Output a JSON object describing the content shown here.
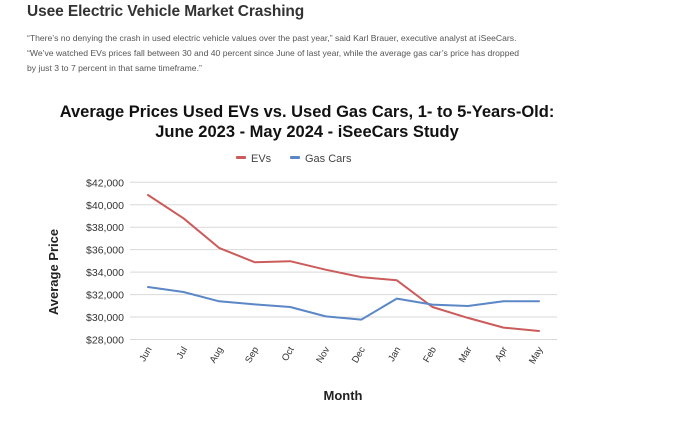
{
  "article": {
    "headline": "Usee Electric Vehicle Market Crashing",
    "quote_lines": [
      "“There’s no denying the crash in used electric vehicle values over the past year,” said Karl Brauer, executive analyst at iSeeCars.",
      "“We’ve watched EVs prices fall between 30 and 40 percent since June of last year, while the average gas car’s price has dropped",
      "by just 3 to 7 percent in that same timeframe.”"
    ]
  },
  "chart_data": {
    "type": "line",
    "title_lines": [
      "Average Prices Used EVs vs. Used Gas Cars, 1- to 5-Years-Old:",
      "June 2023 - May 2024 - iSeeCars Study"
    ],
    "xlabel": "Month",
    "ylabel": "Average Price",
    "categories": [
      "Jun",
      "Jul",
      "Aug",
      "Sep",
      "Oct",
      "Nov",
      "Dec",
      "Jan",
      "Feb",
      "Mar",
      "Apr",
      "May"
    ],
    "yticks": [
      28000,
      30000,
      32000,
      34000,
      36000,
      38000,
      40000,
      42000
    ],
    "ytick_labels": [
      "$28,000",
      "$30,000",
      "$32,000",
      "$34,000",
      "$36,000",
      "$38,000",
      "$40,000",
      "$42,000"
    ],
    "ylim": [
      28000,
      42000
    ],
    "grid": true,
    "legend_position": "top-center",
    "series": [
      {
        "name": "EVs",
        "color": "#cc5b5b",
        "values": [
          40870,
          38790,
          36160,
          34880,
          34970,
          34220,
          33560,
          33270,
          30890,
          29920,
          29060,
          28760
        ]
      },
      {
        "name": "Gas Cars",
        "color": "#5b87c7",
        "values": [
          32680,
          32230,
          31400,
          31130,
          30890,
          30060,
          29770,
          31640,
          31110,
          30980,
          31400,
          31400
        ]
      }
    ]
  }
}
